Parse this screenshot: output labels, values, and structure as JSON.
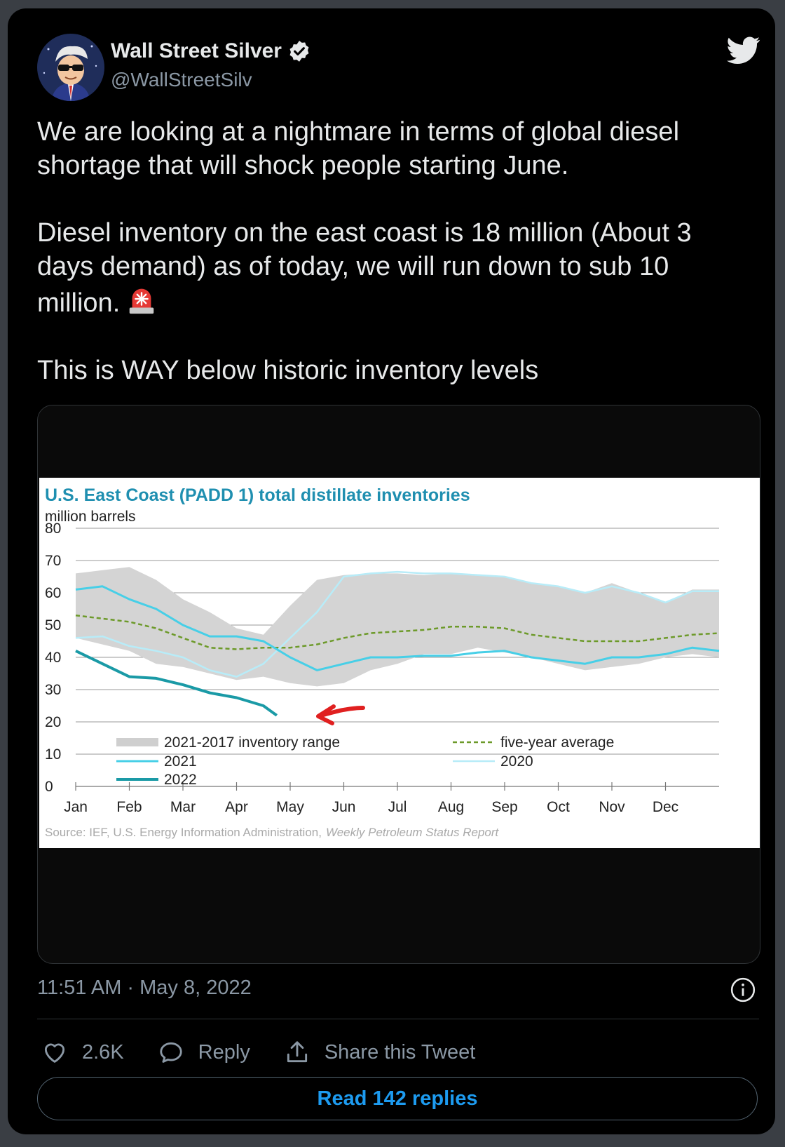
{
  "user": {
    "display_name": "Wall Street Silver",
    "handle": "@WallStreetSilv",
    "verified": true
  },
  "tweet": {
    "paragraph_1": "We are looking at a nightmare in terms of global diesel shortage that will shock people starting June.",
    "paragraph_2": "Diesel inventory on the east coast is 18 million (About 3 days demand) as of today, we will run down to sub 10 million.",
    "paragraph_3": "This is WAY below historic inventory levels",
    "emoji": "siren-icon",
    "timestamp": "11:51 AM · May 8, 2022"
  },
  "actions": {
    "likes": "2.6K",
    "reply_label": "Reply",
    "share_label": "Share this Tweet",
    "read_replies_label": "Read 142 replies"
  },
  "colors": {
    "accent": "#1d9bf0",
    "background": "#000000",
    "text": "#e7e9ea",
    "muted": "#8b98a5"
  },
  "chart_data": {
    "type": "line",
    "title": "U.S. East Coast (PADD 1) total distillate inventories",
    "ylabel": "million barrels",
    "source": "Source: IEF, U.S. Energy Information Administration,",
    "source_italic": "Weekly Petroleum Status Report",
    "xlim": [
      0,
      12
    ],
    "ylim": [
      0,
      80
    ],
    "yticks": [
      0,
      10,
      20,
      30,
      40,
      50,
      60,
      70,
      80
    ],
    "months": [
      "Jan",
      "Feb",
      "Mar",
      "Apr",
      "May",
      "Jun",
      "Jul",
      "Aug",
      "Sep",
      "Oct",
      "Nov",
      "Dec"
    ],
    "legend": {
      "range": "2021-2017 inventory range",
      "s2021": "2021",
      "s2022": "2022",
      "avg": "five-year average",
      "s2020": "2020"
    },
    "range_upper": [
      [
        0,
        66
      ],
      [
        0.5,
        67
      ],
      [
        1,
        68
      ],
      [
        1.5,
        64
      ],
      [
        2,
        58
      ],
      [
        2.5,
        54
      ],
      [
        3,
        49
      ],
      [
        3.5,
        47
      ],
      [
        4,
        56
      ],
      [
        4.5,
        64
      ],
      [
        5,
        65.5
      ],
      [
        5.5,
        66
      ],
      [
        6,
        66
      ],
      [
        6.5,
        65.5
      ],
      [
        7,
        66
      ],
      [
        7.5,
        65.5
      ],
      [
        8,
        65
      ],
      [
        8.5,
        63
      ],
      [
        9,
        62
      ],
      [
        9.5,
        60
      ],
      [
        10,
        63
      ],
      [
        10.5,
        60
      ],
      [
        11,
        57
      ],
      [
        11.5,
        61
      ],
      [
        12,
        61
      ]
    ],
    "range_lower": [
      [
        0,
        46
      ],
      [
        0.5,
        44
      ],
      [
        1,
        42
      ],
      [
        1.5,
        38
      ],
      [
        2,
        37
      ],
      [
        2.5,
        35
      ],
      [
        3,
        33
      ],
      [
        3.5,
        34
      ],
      [
        4,
        32
      ],
      [
        4.5,
        31
      ],
      [
        5,
        32
      ],
      [
        5.5,
        36
      ],
      [
        6,
        38
      ],
      [
        6.5,
        41
      ],
      [
        7,
        41
      ],
      [
        7.5,
        43
      ],
      [
        8,
        41.5
      ],
      [
        8.5,
        40
      ],
      [
        9,
        38
      ],
      [
        9.5,
        36
      ],
      [
        10,
        37
      ],
      [
        10.5,
        38
      ],
      [
        11,
        40
      ],
      [
        11.5,
        41
      ],
      [
        12,
        40
      ]
    ],
    "series": [
      {
        "key": "avg",
        "name": "five-year average",
        "color": "#6d9a2a",
        "dash": "6,4",
        "width": 2.5,
        "points": [
          [
            0,
            53
          ],
          [
            0.5,
            52
          ],
          [
            1,
            51
          ],
          [
            1.5,
            49
          ],
          [
            2,
            46
          ],
          [
            2.5,
            43
          ],
          [
            3,
            42.5
          ],
          [
            3.5,
            43
          ],
          [
            4,
            43
          ],
          [
            4.5,
            44
          ],
          [
            5,
            46
          ],
          [
            5.5,
            47.5
          ],
          [
            6,
            48
          ],
          [
            6.5,
            48.5
          ],
          [
            7,
            49.5
          ],
          [
            7.5,
            49.5
          ],
          [
            8,
            49
          ],
          [
            8.5,
            47
          ],
          [
            9,
            46
          ],
          [
            9.5,
            45
          ],
          [
            10,
            45
          ],
          [
            10.5,
            45
          ],
          [
            11,
            46
          ],
          [
            11.5,
            47
          ],
          [
            12,
            47.5
          ]
        ]
      },
      {
        "key": "s2020",
        "name": "2020",
        "color": "#b8ecf8",
        "dash": "",
        "width": 2.5,
        "points": [
          [
            0,
            46
          ],
          [
            0.5,
            46.5
          ],
          [
            1,
            43.5
          ],
          [
            1.5,
            42
          ],
          [
            2,
            40
          ],
          [
            2.5,
            36
          ],
          [
            3,
            34
          ],
          [
            3.5,
            38
          ],
          [
            4,
            46
          ],
          [
            4.5,
            54
          ],
          [
            5,
            65
          ],
          [
            5.5,
            66
          ],
          [
            6,
            66.5
          ],
          [
            6.5,
            66
          ],
          [
            7,
            66
          ],
          [
            7.5,
            65.5
          ],
          [
            8,
            65
          ],
          [
            8.5,
            63
          ],
          [
            9,
            62
          ],
          [
            9.5,
            60
          ],
          [
            10,
            62
          ],
          [
            10.5,
            60
          ],
          [
            11,
            57
          ],
          [
            11.5,
            60.5
          ],
          [
            12,
            60.5
          ]
        ]
      },
      {
        "key": "s2021",
        "name": "2021",
        "color": "#47cfe7",
        "dash": "",
        "width": 3,
        "points": [
          [
            0,
            61
          ],
          [
            0.5,
            62
          ],
          [
            1,
            58
          ],
          [
            1.5,
            55
          ],
          [
            2,
            50
          ],
          [
            2.5,
            46.5
          ],
          [
            3,
            46.5
          ],
          [
            3.5,
            45
          ],
          [
            4,
            40
          ],
          [
            4.5,
            36
          ],
          [
            5,
            38
          ],
          [
            5.5,
            40
          ],
          [
            6,
            40
          ],
          [
            6.5,
            40.5
          ],
          [
            7,
            40.5
          ],
          [
            7.5,
            41.5
          ],
          [
            8,
            42
          ],
          [
            8.5,
            40
          ],
          [
            9,
            39
          ],
          [
            9.5,
            38
          ],
          [
            10,
            40
          ],
          [
            10.5,
            40
          ],
          [
            11,
            41
          ],
          [
            11.5,
            43
          ],
          [
            12,
            42
          ]
        ]
      },
      {
        "key": "s2022",
        "name": "2022",
        "color": "#1a9aa6",
        "dash": "",
        "width": 4,
        "points": [
          [
            0,
            42
          ],
          [
            0.5,
            38
          ],
          [
            1,
            34
          ],
          [
            1.5,
            33.5
          ],
          [
            2,
            31.5
          ],
          [
            2.5,
            29
          ],
          [
            3,
            27.5
          ],
          [
            3.5,
            25
          ],
          [
            3.75,
            22
          ]
        ]
      }
    ]
  }
}
